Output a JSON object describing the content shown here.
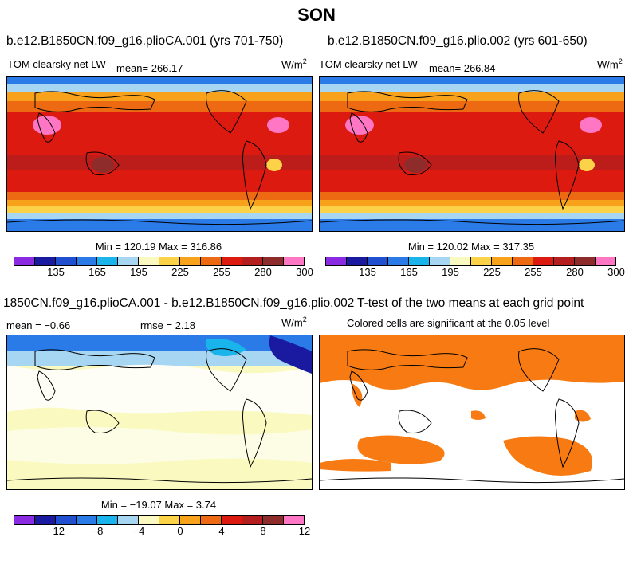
{
  "season": "SON",
  "panels": [
    {
      "title": "b.e12.B1850CN.f09_g16.plioCA.001 (yrs 701-750)",
      "variable": "TOM clearsky net LW",
      "mean": "mean= 266.17",
      "units": "W/m",
      "units_sup": "2",
      "minmax": "Min = 120.19 Max = 316.86"
    },
    {
      "title": "b.e12.B1850CN.f09_g16.plio.002 (yrs 601-650)",
      "variable": "TOM clearsky net LW",
      "mean": "mean= 266.84",
      "units": "W/m",
      "units_sup": "2",
      "minmax": "Min = 120.02 Max = 317.35"
    },
    {
      "title": "1850CN.f09_g16.plioCA.001 - b.e12.B1850CN.f09_g16.plio.002",
      "mean": "mean =  −0.66",
      "rmse": "rmse =   2.18",
      "units": "W/m",
      "units_sup": "2",
      "minmax": "Min = −19.07 Max =   3.74"
    },
    {
      "title": "T-test of the two means at each grid point",
      "note": "Colored cells are significant at the 0.05 level"
    }
  ],
  "colorbar_abs": {
    "colors": [
      "#8a2be2",
      "#1a1aa0",
      "#2050d0",
      "#2a7ae8",
      "#1ab4ec",
      "#a6d6f2",
      "#fafac0",
      "#fcd248",
      "#f7a21a",
      "#ee6a12",
      "#dd1a10",
      "#b41e1e",
      "#8e2c2c",
      "#ff77c4"
    ],
    "ticks": [
      "135",
      "165",
      "195",
      "225",
      "255",
      "280",
      "300"
    ]
  },
  "colorbar_diff": {
    "colors": [
      "#8a2be2",
      "#1a1aa0",
      "#2050d0",
      "#2a7ae8",
      "#1ab4ec",
      "#a6d6f2",
      "#fafac0",
      "#fcd248",
      "#f7a21a",
      "#ee6a12",
      "#dd1a10",
      "#b41e1e",
      "#8e2c2c",
      "#ff77c4"
    ],
    "ticks": [
      "−12",
      "−8",
      "−4",
      "0",
      "4",
      "8",
      "12"
    ]
  },
  "chart_data": [
    {
      "type": "heatmap",
      "title": "b.e12.B1850CN.f09_g16.plioCA.001 (yrs 701-750)",
      "variable": "TOM clearsky net LW",
      "units": "W/m2",
      "mean": 266.17,
      "min": 120.19,
      "max": 316.86,
      "colorbar_ticks": [
        135,
        165,
        195,
        225,
        255,
        280,
        300
      ]
    },
    {
      "type": "heatmap",
      "title": "b.e12.B1850CN.f09_g16.plio.002 (yrs 601-650)",
      "variable": "TOM clearsky net LW",
      "units": "W/m2",
      "mean": 266.84,
      "min": 120.02,
      "max": 317.35,
      "colorbar_ticks": [
        135,
        165,
        195,
        225,
        255,
        280,
        300
      ]
    },
    {
      "type": "heatmap",
      "title": "1850CN.f09_g16.plioCA.001 - b.e12.B1850CN.f09_g16.plio.002",
      "units": "W/m2",
      "mean": -0.66,
      "rmse": 2.18,
      "min": -19.07,
      "max": 3.74,
      "colorbar_ticks": [
        -12,
        -8,
        -4,
        0,
        4,
        8,
        12
      ]
    },
    {
      "type": "heatmap",
      "title": "T-test of the two means at each grid point",
      "note": "Colored cells are significant at the 0.05 level",
      "significant_color": "#f77b12"
    }
  ]
}
